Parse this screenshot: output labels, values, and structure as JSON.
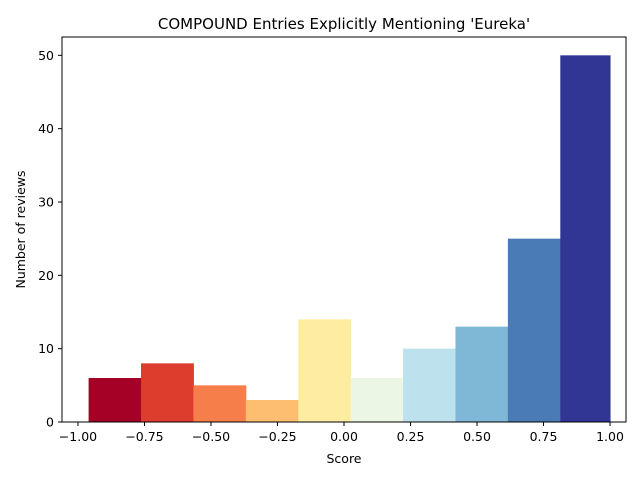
{
  "chart_data": {
    "type": "bar",
    "title": "COMPOUND Entries Explicitly Mentioning 'Eureka'",
    "xlabel": "Score",
    "ylabel": "Number of reviews",
    "xlim": [
      -1.06,
      1.06
    ],
    "ylim": [
      0,
      52.5
    ],
    "bin_edges": [
      -0.96,
      -0.763,
      -0.566,
      -0.369,
      -0.172,
      0.025,
      0.222,
      0.419,
      0.616,
      0.813,
      1.0
    ],
    "values": [
      6,
      8,
      5,
      3,
      14,
      6,
      10,
      13,
      25,
      50
    ],
    "bar_colors": [
      "#a50026",
      "#dd3d2d",
      "#f67e4b",
      "#fdbf6f",
      "#feeda1",
      "#ebf7e4",
      "#bde2ee",
      "#7fb7d7",
      "#4a7bb7",
      "#313695"
    ],
    "xticks": [
      -1.0,
      -0.75,
      -0.5,
      -0.25,
      0.0,
      0.25,
      0.5,
      0.75,
      1.0
    ],
    "xtick_labels": [
      "−1.00",
      "−0.75",
      "−0.50",
      "−0.25",
      "0.00",
      "0.25",
      "0.50",
      "0.75",
      "1.00"
    ],
    "yticks": [
      0,
      10,
      20,
      30,
      40,
      50
    ],
    "ytick_labels": [
      "0",
      "10",
      "20",
      "30",
      "40",
      "50"
    ],
    "grid": false,
    "legend": "none"
  }
}
